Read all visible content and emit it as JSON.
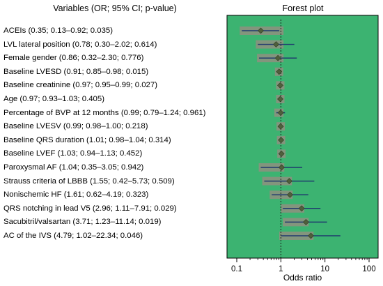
{
  "chart_data": {
    "type": "forest",
    "left_header": "Variables (OR; 95% CI; p-value)",
    "title": "Forest plot",
    "xlabel": "Odds ratio",
    "x_scale": "log",
    "xlim": [
      0.1,
      100
    ],
    "xticks": [
      "0.1",
      "1",
      "10",
      "100"
    ],
    "reference_line": 1,
    "colors": {
      "panel_background": "#3cb371",
      "band": "#8f8f7f",
      "ci_line": "#1f3a6e",
      "point": "#4f5f3c",
      "reference": "#1a1a1a"
    },
    "rows": [
      {
        "label": "ACEIs (0.35; 0.13–0.92; 0.035)",
        "or": 0.35,
        "lo": 0.13,
        "hi": 0.92
      },
      {
        "label": "LVL lateral position (0.78; 0.30–2.02; 0.614)",
        "or": 0.78,
        "lo": 0.3,
        "hi": 2.02
      },
      {
        "label": "Female gender (0.86; 0.32–2.30; 0.776)",
        "or": 0.86,
        "lo": 0.32,
        "hi": 2.3
      },
      {
        "label": "Baseline LVESD (0.91; 0.85–0.98; 0.015)",
        "or": 0.91,
        "lo": 0.85,
        "hi": 0.98
      },
      {
        "label": "Baseline creatinine (0.97; 0.95–0.99; 0.027)",
        "or": 0.97,
        "lo": 0.95,
        "hi": 0.99
      },
      {
        "label": "Age (0.97; 0.93–1.03; 0.405)",
        "or": 0.97,
        "lo": 0.93,
        "hi": 1.03
      },
      {
        "label": "Percentage of BVP at 12 months (0.99; 0.79–1.24; 0.961)",
        "or": 0.99,
        "lo": 0.79,
        "hi": 1.24
      },
      {
        "label": "Baseline LVESV (0.99; 0.98–1.00; 0.218)",
        "or": 0.99,
        "lo": 0.98,
        "hi": 1.0
      },
      {
        "label": "Baseline QRS duration (1.01; 0.98–1.04; 0.314)",
        "or": 1.01,
        "lo": 0.98,
        "hi": 1.04
      },
      {
        "label": "Baseline LVEF (1.03; 0.94–1.13; 0.452)",
        "or": 1.03,
        "lo": 0.94,
        "hi": 1.13
      },
      {
        "label": "Paroxysmal AF (1.04; 0.35–3.05; 0.942)",
        "or": 1.04,
        "lo": 0.35,
        "hi": 3.05
      },
      {
        "label": "Strauss criteria of LBBB (1.55; 0.42–5.73; 0.509)",
        "or": 1.55,
        "lo": 0.42,
        "hi": 5.73
      },
      {
        "label": "Nonischemic HF (1.61; 0.62–4.19; 0.323)",
        "or": 1.61,
        "lo": 0.62,
        "hi": 4.19
      },
      {
        "label": "QRS notching in lead V5 (2.96; 1.11–7.91; 0.029)",
        "or": 2.96,
        "lo": 1.11,
        "hi": 7.91
      },
      {
        "label": "Sacubitril/valsartan (3.71; 1.23–11.14; 0.019)",
        "or": 3.71,
        "lo": 1.23,
        "hi": 11.14
      },
      {
        "label": "AC of the IVS (4.79; 1.02–22.34; 0.046)",
        "or": 4.79,
        "lo": 1.02,
        "hi": 22.34
      }
    ]
  }
}
